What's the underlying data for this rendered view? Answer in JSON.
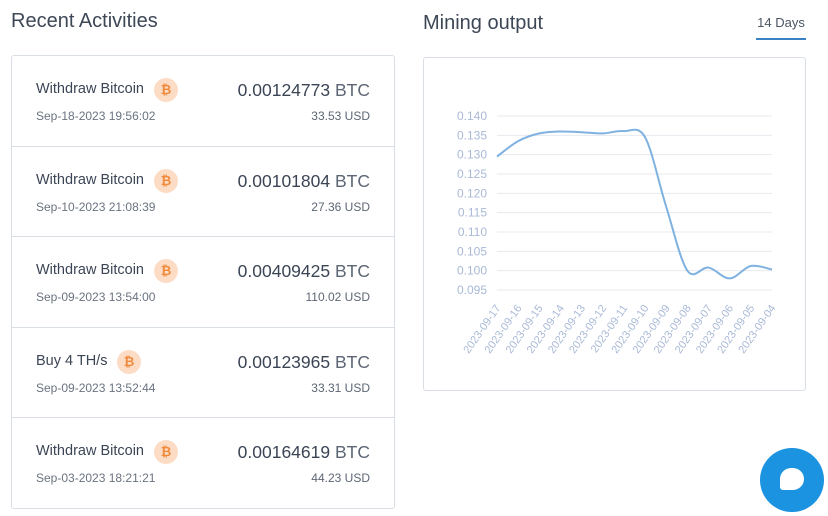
{
  "recent_activities": {
    "title": "Recent Activities",
    "items": [
      {
        "name": "Withdraw Bitcoin",
        "date": "Sep-18-2023 19:56:02",
        "amount": "0.00124773",
        "unit": "BTC",
        "usd": "33.53 USD"
      },
      {
        "name": "Withdraw Bitcoin",
        "date": "Sep-10-2023 21:08:39",
        "amount": "0.00101804",
        "unit": "BTC",
        "usd": "27.36 USD"
      },
      {
        "name": "Withdraw Bitcoin",
        "date": "Sep-09-2023 13:54:00",
        "amount": "0.00409425",
        "unit": "BTC",
        "usd": "110.02 USD"
      },
      {
        "name": "Buy 4 TH/s",
        "date": "Sep-09-2023 13:52:44",
        "amount": "0.00123965",
        "unit": "BTC",
        "usd": "33.31 USD"
      },
      {
        "name": "Withdraw Bitcoin",
        "date": "Sep-03-2023 18:21:21",
        "amount": "0.00164619",
        "unit": "BTC",
        "usd": "44.23 USD"
      }
    ],
    "badge_symbol": "₿"
  },
  "mining_output": {
    "title": "Mining output",
    "tab_label": "14 Days"
  },
  "chart_data": {
    "type": "line",
    "title": "",
    "xlabel": "",
    "ylabel": "",
    "x": [
      "2023-09-17",
      "2023-09-16",
      "2023-09-15",
      "2023-09-14",
      "2023-09-13",
      "2023-09-12",
      "2023-09-11",
      "2023-09-10",
      "2023-09-09",
      "2023-09-08",
      "2023-09-07",
      "2023-09-06",
      "2023-09-05",
      "2023-09-04"
    ],
    "series": [
      {
        "values": [
          0.1295,
          0.1335,
          0.1355,
          0.136,
          0.1358,
          0.1355,
          0.1361,
          0.1345,
          0.1165,
          0.1,
          0.1008,
          0.098,
          0.1012,
          0.1003
        ]
      }
    ],
    "yticks": [
      "0.140",
      "0.135",
      "0.130",
      "0.125",
      "0.120",
      "0.115",
      "0.110",
      "0.105",
      "0.100",
      "0.095"
    ],
    "ylim": [
      0.095,
      0.14
    ],
    "grid": true,
    "line_color": "#7fb2e0"
  },
  "colors": {
    "accent": "#3b82c4",
    "badge_bg": "#fcdcc4",
    "badge_fg": "#f08a3c",
    "chat": "#1b93e0"
  },
  "icons": {
    "badge": "bitcoin-icon",
    "chat": "chat-icon"
  }
}
